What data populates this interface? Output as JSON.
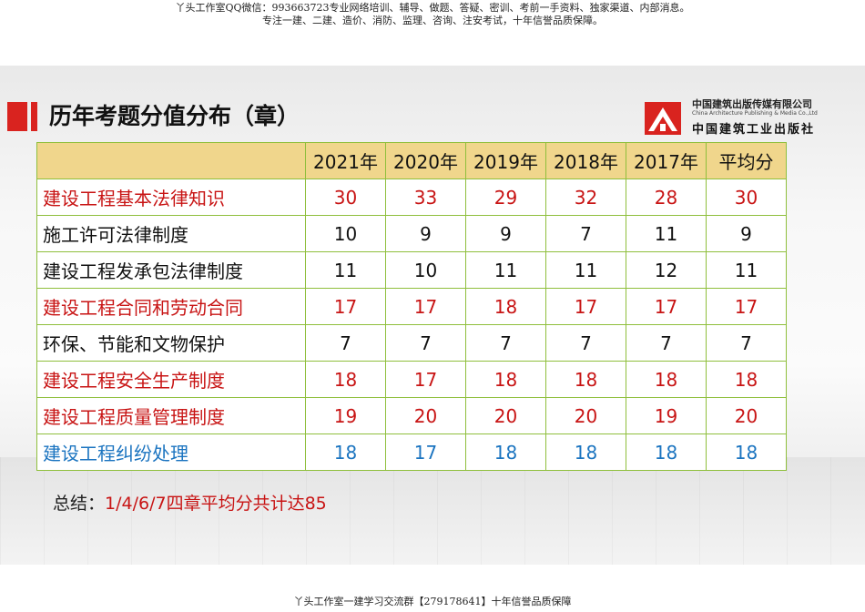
{
  "header_note": {
    "line1": "丫头工作室QQ微信：993663723专业网络培训、辅导、做题、答疑、密训、考前一手资料、独家渠道、内部消息。",
    "line2": "专注一建、二建、造价、消防、监理、咨询、注安考试，十年信誉品质保障。"
  },
  "slide": {
    "title": "历年考题分值分布（章）",
    "logo": {
      "cn": "中国建筑出版传媒有限公司",
      "en": "China Architecture Publishing & Media Co.,Ltd",
      "cn2": "中国建筑工业出版社",
      "icon": "publisher-logo-icon"
    },
    "table": {
      "headers": [
        "2021年",
        "2020年",
        "2019年",
        "2018年",
        "2017年",
        "平均分"
      ],
      "rows": [
        {
          "name": "建设工程基本法律知识",
          "values": [
            "30",
            "33",
            "29",
            "32",
            "28",
            "30"
          ],
          "color": "red"
        },
        {
          "name": "施工许可法律制度",
          "values": [
            "10",
            "9",
            "9",
            "7",
            "11",
            "9"
          ],
          "color": "black"
        },
        {
          "name": "建设工程发承包法律制度",
          "values": [
            "11",
            "10",
            "11",
            "11",
            "12",
            "11"
          ],
          "color": "black"
        },
        {
          "name": "建设工程合同和劳动合同",
          "values": [
            "17",
            "17",
            "18",
            "17",
            "17",
            "17"
          ],
          "color": "red"
        },
        {
          "name": "环保、节能和文物保护",
          "values": [
            "7",
            "7",
            "7",
            "7",
            "7",
            "7"
          ],
          "color": "black"
        },
        {
          "name": "建设工程安全生产制度",
          "values": [
            "18",
            "17",
            "18",
            "18",
            "18",
            "18"
          ],
          "color": "red"
        },
        {
          "name": "建设工程质量管理制度",
          "values": [
            "19",
            "20",
            "20",
            "20",
            "19",
            "20"
          ],
          "color": "red"
        },
        {
          "name": "建设工程纠纷处理",
          "values": [
            "18",
            "17",
            "18",
            "18",
            "18",
            "18"
          ],
          "color": "blue"
        }
      ]
    },
    "summary": {
      "label": "总结：",
      "text": "1/4/6/7四章平均分共计达85"
    },
    "colors": {
      "accent_red": "#d9231f",
      "header_fill": "#f0d68c",
      "border_green": "#8fbf3c",
      "text_red": "#c81414",
      "text_blue": "#1b74c0"
    }
  },
  "footer_note": "丫头工作室一建学习交流群【279178641】十年信誉品质保障"
}
